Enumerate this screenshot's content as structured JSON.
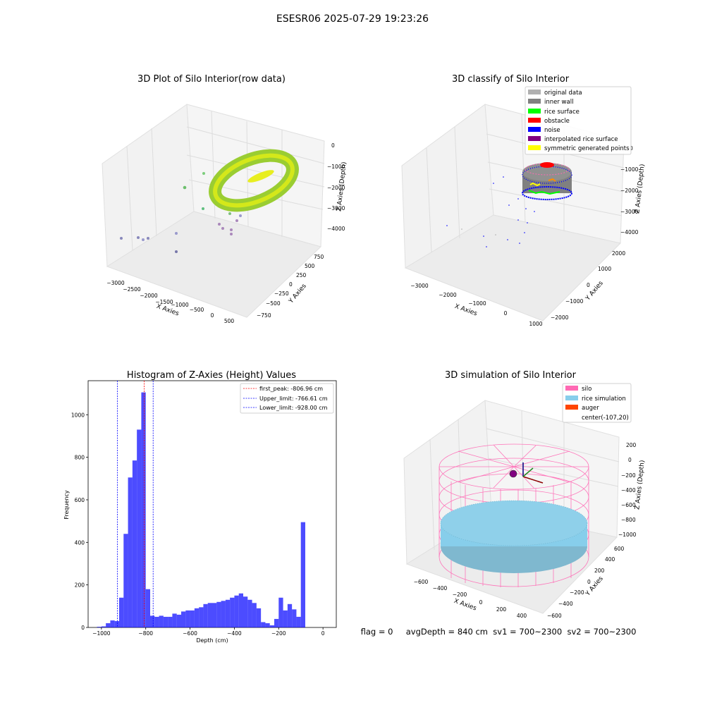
{
  "figure": {
    "suptitle": "ESESR06 2025-07-29 19:23:26",
    "status_line": "flag = 0     avgDepth = 840 cm  sv1 = 700~2300  sv2 = 700~2300"
  },
  "panel_raw": {
    "title": "3D Plot of Silo Interior(row data)",
    "xlabel": "X Axies",
    "ylabel": "Y Axies",
    "zlabel": "Z Axies (Depth)",
    "x_ticks": [
      "−3000",
      "−2500",
      "−2000",
      "−1500",
      "−1000",
      "−500",
      "0",
      "500"
    ],
    "y_ticks": [
      "750",
      "500",
      "250",
      "0",
      "−250",
      "−500",
      "−750"
    ],
    "z_ticks": [
      "0",
      "−1000",
      "−2000",
      "−3000",
      "−4000"
    ]
  },
  "panel_classify": {
    "title": "3D classify of Silo Interior",
    "xlabel": "X Axies",
    "ylabel": "Y Axies",
    "zlabel": "Z Axies (Depth)",
    "x_ticks": [
      "−3000",
      "−2000",
      "−1000",
      "0",
      "1000"
    ],
    "y_ticks": [
      "2000",
      "1000",
      "0",
      "−1000",
      "−2000"
    ],
    "z_ticks": [
      "0",
      "−1000",
      "−2000",
      "−3000",
      "−4000"
    ],
    "legend": [
      {
        "label": "original data",
        "color": "#b0b0b0"
      },
      {
        "label": "inner wall",
        "color": "#808080"
      },
      {
        "label": "rice surface",
        "color": "#00ff00"
      },
      {
        "label": "obstacle",
        "color": "#ff0000"
      },
      {
        "label": "noise",
        "color": "#0000ff"
      },
      {
        "label": "interpolated rice surface",
        "color": "#800080"
      },
      {
        "label": "symmetric generated points",
        "color": "#ffff00"
      }
    ]
  },
  "panel_sim": {
    "title": "3D simulation of Silo Interior",
    "xlabel": "X Axies",
    "ylabel": "Y Axies",
    "zlabel": "Z Axies (Depth)",
    "x_ticks": [
      "−600",
      "−400",
      "−200",
      "0",
      "200",
      "400"
    ],
    "y_ticks": [
      "600",
      "400",
      "200",
      "0",
      "−200",
      "−400",
      "−600"
    ],
    "z_ticks": [
      "200",
      "0",
      "−200",
      "−400",
      "−600",
      "−800",
      "−1000"
    ],
    "legend": [
      {
        "label": "silo",
        "color": "#ff69b4"
      },
      {
        "label": "rice simulation",
        "color": "#87ceeb"
      },
      {
        "label": "auger",
        "color": "#ff4500"
      },
      {
        "label": "center(-107,20)",
        "color": ""
      }
    ]
  },
  "chart_data": {
    "type": "bar",
    "title": "Histogram of Z-Axies (Height) Values",
    "xlabel": "Depth (cm)",
    "ylabel": "Frequency",
    "bar_color": "#0000ff",
    "bar_alpha": 0.7,
    "xlim": [
      -1060,
      60
    ],
    "ylim": [
      0,
      1160
    ],
    "bin_width": 20,
    "x_ticks": [
      -1000,
      -800,
      -600,
      -400,
      -200,
      0
    ],
    "x_tick_labels": [
      "−1000",
      "−800",
      "−600",
      "−400",
      "−200",
      "0"
    ],
    "y_ticks": [
      0,
      200,
      400,
      600,
      800,
      1000
    ],
    "y_tick_labels": [
      "0",
      "200",
      "400",
      "600",
      "800",
      "1000"
    ],
    "bin_starts": [
      -1020,
      -1000,
      -980,
      -960,
      -940,
      -920,
      -900,
      -880,
      -860,
      -840,
      -820,
      -800,
      -780,
      -760,
      -740,
      -720,
      -700,
      -680,
      -660,
      -640,
      -620,
      -600,
      -580,
      -560,
      -540,
      -520,
      -500,
      -480,
      -460,
      -440,
      -420,
      -400,
      -380,
      -360,
      -340,
      -320,
      -300,
      -280,
      -260,
      -240,
      -220,
      -200,
      -180,
      -160,
      -140,
      -120,
      -100,
      -80,
      -60,
      -40,
      -20,
      -5
    ],
    "counts": [
      3,
      5,
      20,
      33,
      30,
      140,
      440,
      705,
      785,
      930,
      1105,
      180,
      55,
      50,
      55,
      50,
      50,
      65,
      60,
      75,
      80,
      80,
      90,
      95,
      110,
      115,
      115,
      120,
      125,
      130,
      140,
      150,
      160,
      145,
      130,
      115,
      90,
      25,
      20,
      10,
      40,
      140,
      80,
      110,
      85,
      50,
      495,
      0,
      0,
      0,
      0,
      0
    ],
    "vlines": [
      {
        "x": -806.96,
        "color": "#ff0000",
        "label": "first_peak: -806.96 cm"
      },
      {
        "x": -766.61,
        "color": "#0000ff",
        "label": "Upper_limit: -766.61 cm"
      },
      {
        "x": -928.0,
        "color": "#0000ff",
        "label": "Lower_limit: -928.00 cm"
      }
    ],
    "legend_position": "upper right"
  }
}
